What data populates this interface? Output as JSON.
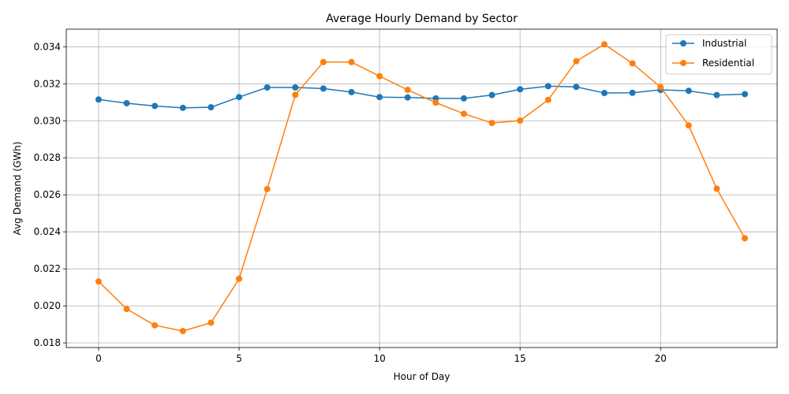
{
  "chart_data": {
    "type": "line",
    "title": "Average Hourly Demand by Sector",
    "xlabel": "Hour of Day",
    "ylabel": "Avg Demand (GWh)",
    "x": [
      0,
      1,
      2,
      3,
      4,
      5,
      6,
      7,
      8,
      9,
      10,
      11,
      12,
      13,
      14,
      15,
      16,
      17,
      18,
      19,
      20,
      21,
      22,
      23
    ],
    "xlim": [
      -1.15,
      24.15
    ],
    "ylim": [
      0.01775,
      0.03495
    ],
    "xticks": [
      0,
      5,
      10,
      15,
      20
    ],
    "xtick_labels": [
      "0",
      "5",
      "10",
      "15",
      "20"
    ],
    "yticks": [
      0.018,
      0.02,
      0.022,
      0.024,
      0.026,
      0.028,
      0.03,
      0.032,
      0.034
    ],
    "ytick_labels": [
      "0.018",
      "0.020",
      "0.022",
      "0.024",
      "0.026",
      "0.028",
      "0.030",
      "0.032",
      "0.034"
    ],
    "grid": true,
    "legend_position": "top-right",
    "series": [
      {
        "name": "Industrial",
        "color": "#1f77b4",
        "marker": "circle",
        "values": [
          0.03115,
          0.03095,
          0.0308,
          0.0307,
          0.03073,
          0.03128,
          0.0318,
          0.0318,
          0.03174,
          0.03155,
          0.03128,
          0.03126,
          0.03121,
          0.03121,
          0.03139,
          0.0317,
          0.03187,
          0.03183,
          0.0315,
          0.03151,
          0.03167,
          0.03162,
          0.03139,
          0.03144
        ]
      },
      {
        "name": "Residential",
        "color": "#ff7f0e",
        "marker": "circle",
        "values": [
          0.02132,
          0.01983,
          0.01895,
          0.01864,
          0.01909,
          0.02146,
          0.02631,
          0.0314,
          0.03317,
          0.03317,
          0.03241,
          0.03167,
          0.03098,
          0.03038,
          0.02988,
          0.03001,
          0.03113,
          0.03322,
          0.03413,
          0.0331,
          0.03182,
          0.02975,
          0.02633,
          0.02365
        ]
      }
    ]
  }
}
